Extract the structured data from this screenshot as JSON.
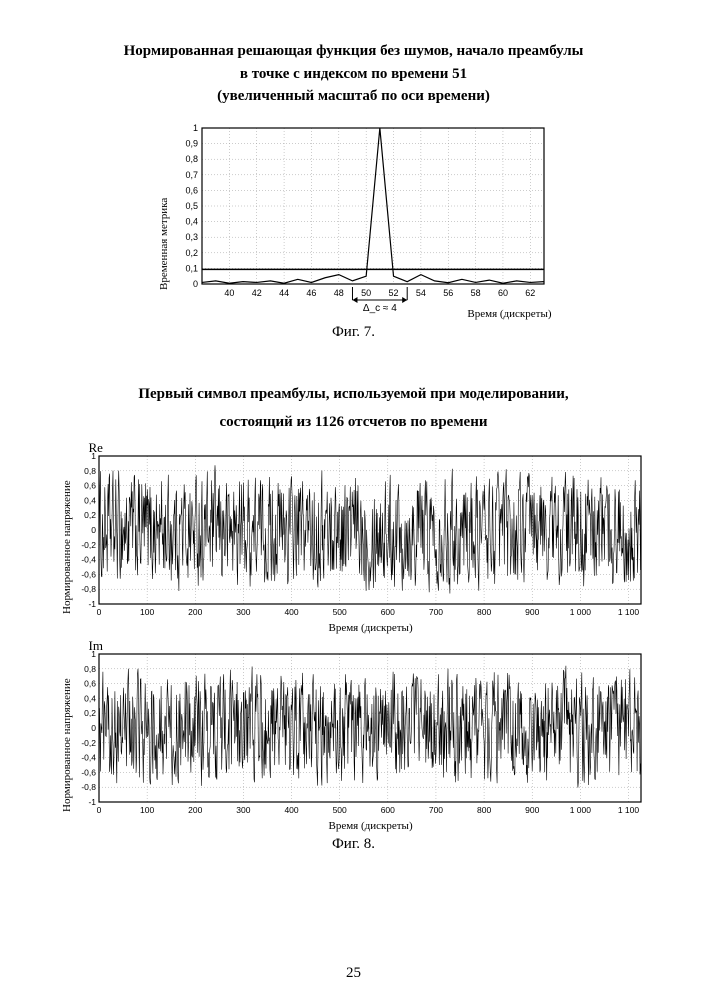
{
  "page_number": "25",
  "fig7": {
    "title_line1": "Нормированная решающая функция  без шумов, начало преамбулы",
    "title_line2": "в точке с индексом по времени 51",
    "title_line3": "(увеличенный масштаб по оси времени)",
    "caption": "Фиг. 7.",
    "ylabel": "Временная метрика",
    "xlabel": "Время (дискреты)",
    "type": "line",
    "xlim": [
      38,
      63
    ],
    "ylim": [
      0,
      1.0
    ],
    "xtick_step": 2,
    "ytick_step": 0.1,
    "ytick_labels": [
      "0",
      "0,1",
      "0,2",
      "0,3",
      "0,4",
      "0,5",
      "0,6",
      "0,7",
      "0,8",
      "0,9",
      "1"
    ],
    "xtick_labels": [
      "40",
      "42",
      "44",
      "46",
      "48",
      "50",
      "52",
      "54",
      "56",
      "58",
      "60",
      "62"
    ],
    "line_color": "#000000",
    "grid_color": "#9a9a9a",
    "threshold_y": 0.094,
    "threshold_color": "#000000",
    "delta_label": "Δ_c ≈ 4",
    "delta_x1": 49,
    "delta_x2": 53,
    "background_color": "#ffffff",
    "data": [
      [
        38,
        0.01
      ],
      [
        39,
        0.02
      ],
      [
        40,
        0.005
      ],
      [
        41,
        0.015
      ],
      [
        42,
        0.01
      ],
      [
        43,
        0.02
      ],
      [
        44,
        0.005
      ],
      [
        45,
        0.03
      ],
      [
        46,
        0.01
      ],
      [
        47,
        0.04
      ],
      [
        48,
        0.06
      ],
      [
        49,
        0.02
      ],
      [
        50,
        0.05
      ],
      [
        51,
        1.0
      ],
      [
        52,
        0.05
      ],
      [
        53,
        0.015
      ],
      [
        54,
        0.06
      ],
      [
        55,
        0.02
      ],
      [
        56,
        0.008
      ],
      [
        57,
        0.03
      ],
      [
        58,
        0.01
      ],
      [
        59,
        0.025
      ],
      [
        60,
        0.005
      ],
      [
        61,
        0.02
      ],
      [
        62,
        0.01
      ],
      [
        63,
        0.015
      ]
    ]
  },
  "fig8": {
    "title_line1": "Первый символ преамбулы, используемой при моделировании,",
    "title_line2": "состоящий из 1126 отсчетов по времени",
    "caption": "Фиг. 8.",
    "ylabel": "Нормированное напряжение",
    "xlabel": "Время (дискреты)",
    "re_label": "Re",
    "im_label": "Im",
    "xlim": [
      0,
      1126
    ],
    "ylim": [
      -1.0,
      1.0
    ],
    "xtick_step": 100,
    "ytick_step": 0.2,
    "ytick_labels": [
      "-1",
      "-0,8",
      "-0,6",
      "-0,4",
      "-0,2",
      "0",
      "0,2",
      "0,4",
      "0,6",
      "0,8",
      "1"
    ],
    "xtick_labels": [
      "0",
      "100",
      "200",
      "300",
      "400",
      "500",
      "600",
      "700",
      "800",
      "900",
      "1 000",
      "1 100"
    ],
    "line_color": "#000000",
    "grid_color": "#9a9a9a",
    "background_color": "#ffffff",
    "n_points": 1126,
    "seed_re": 1234,
    "seed_im": 5678,
    "amplitude": 0.95
  }
}
